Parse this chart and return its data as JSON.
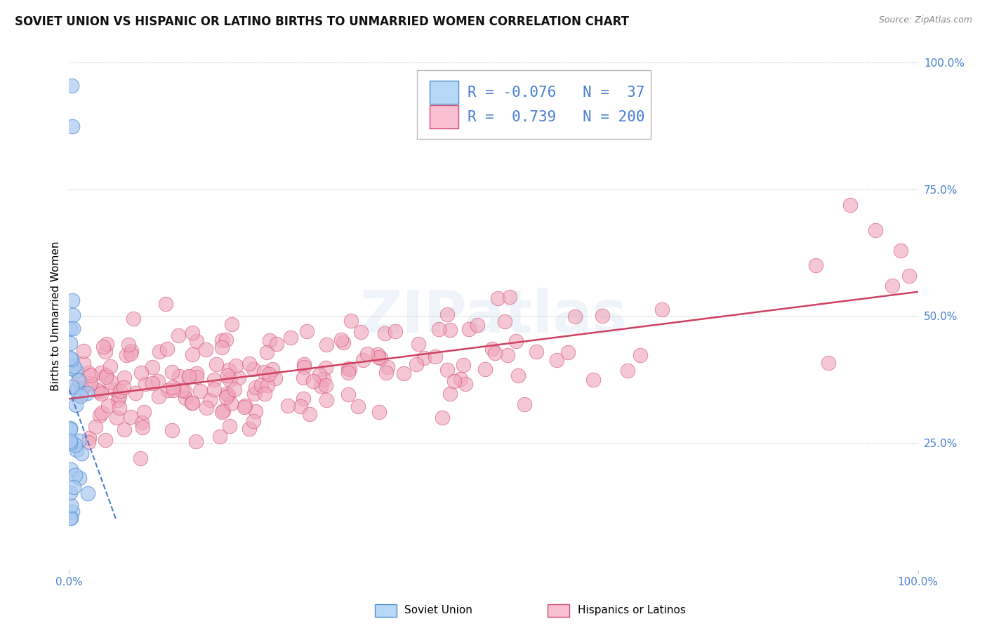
{
  "title": "SOVIET UNION VS HISPANIC OR LATINO BIRTHS TO UNMARRIED WOMEN CORRELATION CHART",
  "source": "Source: ZipAtlas.com",
  "ylabel": "Births to Unmarried Women",
  "background_color": "#ffffff",
  "blue_dot_color": "#a8c8f0",
  "blue_dot_edge": "#5090d0",
  "pink_dot_color": "#f0a8bc",
  "pink_dot_edge": "#d04870",
  "pink_line_color": "#d04060",
  "blue_line_color": "#4a80d0",
  "grid_color": "#cccccc",
  "tick_color": "#4a80d0",
  "legend_blue_face": "#b8d8f8",
  "legend_blue_edge": "#5090d0",
  "legend_pink_face": "#f8c0d0",
  "legend_pink_edge": "#d04870",
  "R_blue": -0.076,
  "N_blue": 37,
  "R_pink": 0.739,
  "N_pink": 200,
  "watermark": "ZIPatlas",
  "legend_label_blue": "Soviet Union",
  "legend_label_pink": "Hispanics or Latinos",
  "title_fontsize": 12,
  "tick_fontsize": 11,
  "legend_fontsize": 15,
  "ylabel_fontsize": 11
}
